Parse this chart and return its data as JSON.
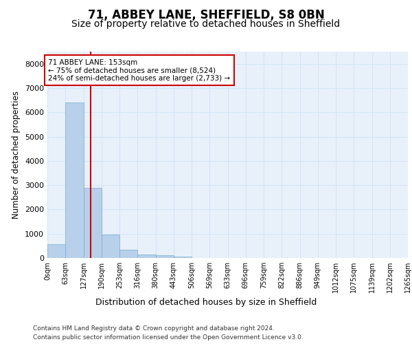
{
  "title1": "71, ABBEY LANE, SHEFFIELD, S8 0BN",
  "title2": "Size of property relative to detached houses in Sheffield",
  "xlabel": "Distribution of detached houses by size in Sheffield",
  "ylabel": "Number of detached properties",
  "bar_values": [
    580,
    6400,
    2900,
    950,
    350,
    150,
    100,
    60,
    5,
    2,
    1,
    0,
    0,
    0,
    0,
    0,
    0,
    0,
    0,
    0
  ],
  "bin_edges": [
    0,
    63,
    127,
    190,
    253,
    316,
    380,
    443,
    506,
    569,
    633,
    696,
    759,
    822,
    886,
    949,
    1012,
    1075,
    1139,
    1202,
    1265
  ],
  "tick_labels": [
    "0sqm",
    "63sqm",
    "127sqm",
    "190sqm",
    "253sqm",
    "316sqm",
    "380sqm",
    "443sqm",
    "506sqm",
    "569sqm",
    "633sqm",
    "696sqm",
    "759sqm",
    "822sqm",
    "886sqm",
    "949sqm",
    "1012sqm",
    "1075sqm",
    "1139sqm",
    "1202sqm",
    "1265sqm"
  ],
  "bar_color": "#b8d0ea",
  "bar_edge_color": "#7aaad0",
  "grid_color": "#d0e4f5",
  "background_color": "#e8f0fa",
  "property_sqm": 153,
  "property_line_color": "#cc0000",
  "annotation_text": "71 ABBEY LANE: 153sqm\n← 75% of detached houses are smaller (8,524)\n24% of semi-detached houses are larger (2,733) →",
  "annotation_box_color": "#cc0000",
  "ylim": [
    0,
    8500
  ],
  "yticks": [
    0,
    1000,
    2000,
    3000,
    4000,
    5000,
    6000,
    7000,
    8000
  ],
  "footer_line1": "Contains HM Land Registry data © Crown copyright and database right 2024.",
  "footer_line2": "Contains public sector information licensed under the Open Government Licence v3.0.",
  "title1_fontsize": 12,
  "title2_fontsize": 10,
  "tick_fontsize": 7,
  "ylabel_fontsize": 8.5,
  "xlabel_fontsize": 9,
  "annotation_fontsize": 7.5,
  "footer_fontsize": 6.5
}
